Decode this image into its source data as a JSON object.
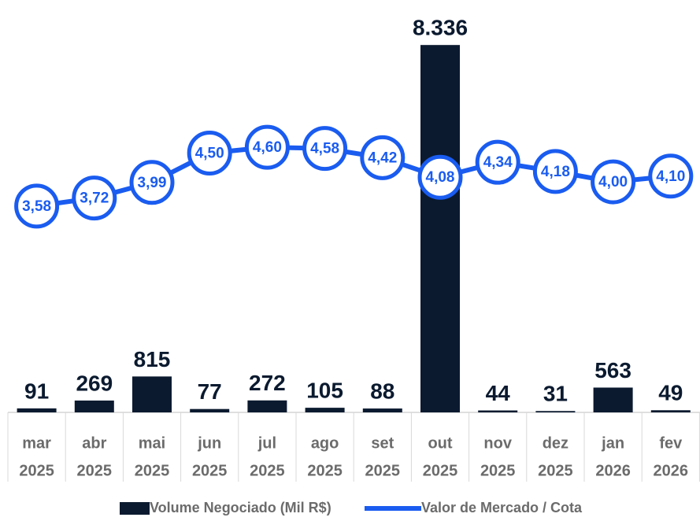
{
  "chart_data": {
    "type": "bar",
    "categories": [
      [
        "mar",
        "2025"
      ],
      [
        "abr",
        "2025"
      ],
      [
        "mai",
        "2025"
      ],
      [
        "jun",
        "2025"
      ],
      [
        "jul",
        "2025"
      ],
      [
        "ago",
        "2025"
      ],
      [
        "set",
        "2025"
      ],
      [
        "out",
        "2025"
      ],
      [
        "nov",
        "2025"
      ],
      [
        "dez",
        "2025"
      ],
      [
        "jan",
        "2026"
      ],
      [
        "fev",
        "2026"
      ]
    ],
    "series": [
      {
        "name": "Volume Negociado (Mil R$)",
        "type": "bar",
        "color": "#0b1a2f",
        "values": [
          91,
          269,
          815,
          77,
          272,
          105,
          88,
          8336,
          44,
          31,
          563,
          49
        ],
        "value_labels": [
          "91",
          "269",
          "815",
          "77",
          "272",
          "105",
          "88",
          "8.336",
          "44",
          "31",
          "563",
          "49"
        ]
      },
      {
        "name": "Valor de Mercado / Cota",
        "type": "line",
        "axis": "y2",
        "color": "#1a5cf0",
        "values": [
          3.58,
          3.72,
          3.99,
          4.5,
          4.6,
          4.58,
          4.42,
          4.08,
          4.34,
          4.18,
          4.0,
          4.1
        ],
        "value_labels": [
          "3,58",
          "3,72",
          "3,99",
          "4,50",
          "4,60",
          "4,58",
          "4,42",
          "4,08",
          "4,34",
          "4,18",
          "4,00",
          "4,10"
        ]
      }
    ],
    "ylim": [
      0,
      8500
    ],
    "y2lim": [
      0,
      6.5
    ],
    "legend": "bottom"
  }
}
